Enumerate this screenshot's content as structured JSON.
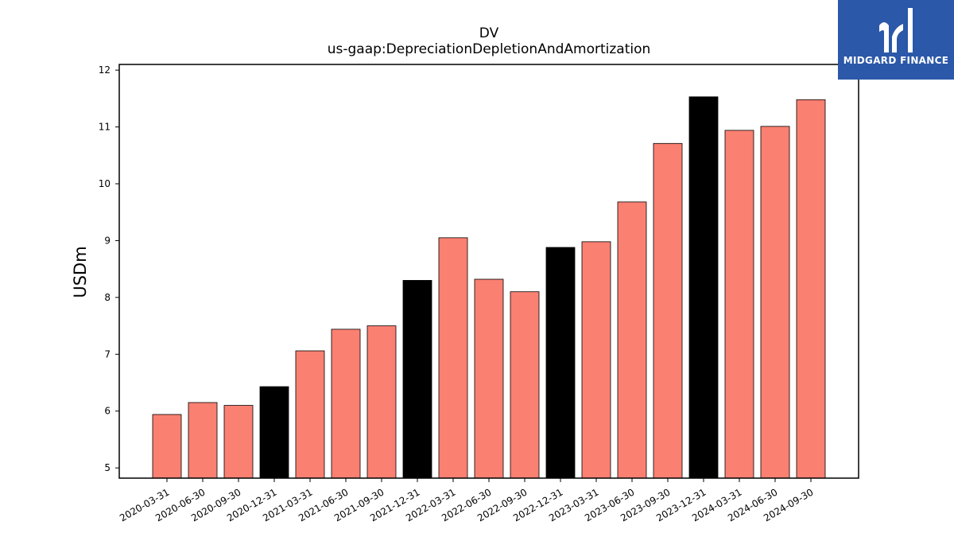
{
  "title": "DV",
  "subtitle": "us-gaap:DepreciationDepletionAndAmortization",
  "brand": {
    "name": "MIDGARD FINANCE",
    "background": "#2b58a8",
    "icon": "midgard-logo-icon"
  },
  "chart_data": {
    "type": "bar",
    "ylabel": "USDm",
    "xlabel": "",
    "ylim": [
      4.82,
      12.1
    ],
    "yticks": [
      5,
      6,
      7,
      8,
      9,
      10,
      11,
      12
    ],
    "grid": false,
    "legend": "none",
    "categories": [
      "2020-03-31",
      "2020-06-30",
      "2020-09-30",
      "2020-12-31",
      "2021-03-31",
      "2021-06-30",
      "2021-09-30",
      "2021-12-31",
      "2022-03-31",
      "2022-06-30",
      "2022-09-30",
      "2022-12-31",
      "2023-03-31",
      "2023-06-30",
      "2023-09-30",
      "2023-12-31",
      "2024-03-31",
      "2024-06-30",
      "2024-09-30"
    ],
    "values": [
      5.94,
      6.15,
      6.1,
      6.43,
      7.06,
      7.44,
      7.5,
      8.3,
      9.05,
      8.32,
      8.1,
      8.88,
      8.98,
      9.68,
      10.71,
      11.53,
      10.94,
      11.01,
      11.48
    ],
    "colors": {
      "quarter": "#fa8072",
      "year_end": "#000000",
      "edge": "#000000"
    }
  }
}
